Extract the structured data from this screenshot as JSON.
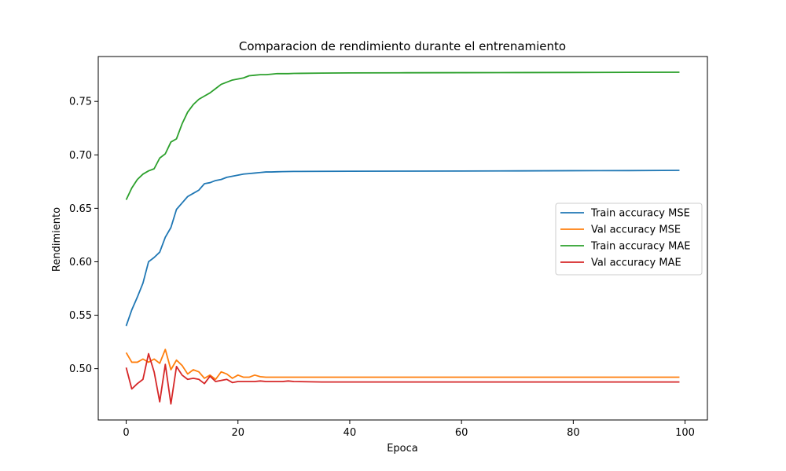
{
  "chart_data": {
    "type": "line",
    "title": "Comparacion de rendimiento durante el entrenamiento",
    "xlabel": "Epoca",
    "ylabel": "Rendimiento",
    "xlim": [
      -5,
      104
    ],
    "ylim": [
      0.452,
      0.792
    ],
    "xticks": [
      0,
      20,
      40,
      60,
      80,
      100
    ],
    "yticks": [
      0.5,
      0.55,
      0.6,
      0.65,
      0.7,
      0.75
    ],
    "ytick_labels": [
      "0.50",
      "0.55",
      "0.60",
      "0.65",
      "0.70",
      "0.75"
    ],
    "grid": false,
    "legend_position": "center-right",
    "series": [
      {
        "name": "Train accuracy MSE",
        "color": "#1f77b4",
        "x": [
          0,
          1,
          2,
          3,
          4,
          5,
          6,
          7,
          8,
          9,
          10,
          11,
          12,
          13,
          14,
          15,
          16,
          17,
          18,
          19,
          20,
          21,
          22,
          23,
          24,
          25,
          26,
          27,
          28,
          29,
          30,
          35,
          40,
          50,
          60,
          70,
          80,
          90,
          99
        ],
        "y": [
          0.54,
          0.555,
          0.567,
          0.58,
          0.6,
          0.604,
          0.609,
          0.623,
          0.632,
          0.649,
          0.655,
          0.661,
          0.664,
          0.667,
          0.673,
          0.674,
          0.676,
          0.677,
          0.679,
          0.68,
          0.681,
          0.682,
          0.6825,
          0.683,
          0.6835,
          0.684,
          0.684,
          0.6842,
          0.6843,
          0.6844,
          0.6845,
          0.6846,
          0.6847,
          0.6848,
          0.6849,
          0.685,
          0.6852,
          0.6853,
          0.6855
        ]
      },
      {
        "name": "Val accuracy MSE",
        "color": "#ff7f0e",
        "x": [
          0,
          1,
          2,
          3,
          4,
          5,
          6,
          7,
          8,
          9,
          10,
          11,
          12,
          13,
          14,
          15,
          16,
          17,
          18,
          19,
          20,
          21,
          22,
          23,
          24,
          25,
          26,
          27,
          28,
          29,
          30,
          35,
          40,
          50,
          60,
          70,
          80,
          90,
          99
        ],
        "y": [
          0.515,
          0.506,
          0.506,
          0.509,
          0.506,
          0.509,
          0.505,
          0.518,
          0.499,
          0.508,
          0.503,
          0.495,
          0.499,
          0.497,
          0.491,
          0.494,
          0.49,
          0.497,
          0.495,
          0.491,
          0.494,
          0.492,
          0.492,
          0.494,
          0.4925,
          0.492,
          0.492,
          0.492,
          0.492,
          0.492,
          0.492,
          0.492,
          0.492,
          0.492,
          0.492,
          0.492,
          0.492,
          0.492,
          0.492
        ]
      },
      {
        "name": "Train accuracy MAE",
        "color": "#2ca02c",
        "x": [
          0,
          1,
          2,
          3,
          4,
          5,
          6,
          7,
          8,
          9,
          10,
          11,
          12,
          13,
          14,
          15,
          16,
          17,
          18,
          19,
          20,
          21,
          22,
          23,
          24,
          25,
          26,
          27,
          28,
          29,
          30,
          35,
          40,
          50,
          60,
          70,
          80,
          90,
          99
        ],
        "y": [
          0.658,
          0.669,
          0.677,
          0.682,
          0.685,
          0.687,
          0.697,
          0.701,
          0.712,
          0.715,
          0.729,
          0.74,
          0.747,
          0.752,
          0.755,
          0.758,
          0.762,
          0.766,
          0.768,
          0.77,
          0.771,
          0.772,
          0.774,
          0.7745,
          0.775,
          0.775,
          0.7755,
          0.776,
          0.776,
          0.776,
          0.7762,
          0.7765,
          0.7767,
          0.7768,
          0.7769,
          0.777,
          0.7771,
          0.7772,
          0.7773
        ]
      },
      {
        "name": "Val accuracy MAE",
        "color": "#d62728",
        "x": [
          0,
          1,
          2,
          3,
          4,
          5,
          6,
          7,
          8,
          9,
          10,
          11,
          12,
          13,
          14,
          15,
          16,
          17,
          18,
          19,
          20,
          21,
          22,
          23,
          24,
          25,
          26,
          27,
          28,
          29,
          30,
          35,
          40,
          50,
          60,
          70,
          80,
          90,
          99
        ],
        "y": [
          0.501,
          0.481,
          0.486,
          0.49,
          0.514,
          0.497,
          0.469,
          0.504,
          0.467,
          0.502,
          0.494,
          0.49,
          0.491,
          0.49,
          0.486,
          0.493,
          0.488,
          0.489,
          0.49,
          0.487,
          0.488,
          0.488,
          0.488,
          0.488,
          0.4885,
          0.488,
          0.488,
          0.488,
          0.488,
          0.4885,
          0.488,
          0.4875,
          0.4875,
          0.4875,
          0.4875,
          0.4875,
          0.4875,
          0.4875,
          0.4875
        ]
      }
    ]
  }
}
